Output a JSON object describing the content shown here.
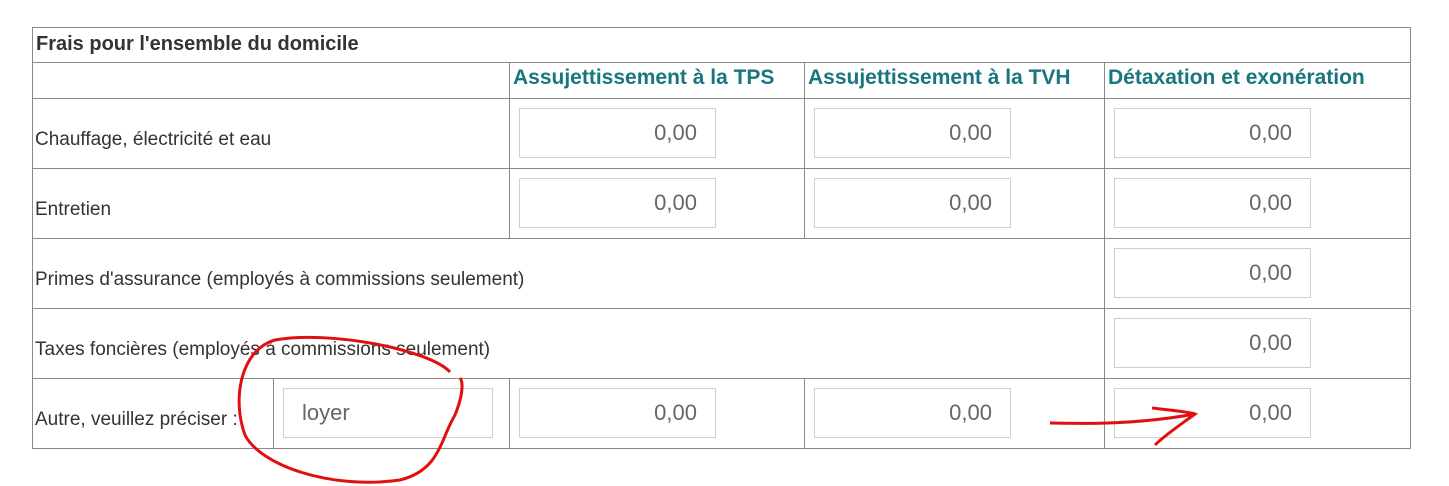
{
  "title": "Frais pour l'ensemble du domicile",
  "columns": [
    "Assujettissement à la TPS",
    "Assujettissement à la TVH",
    "Détaxation et exonération"
  ],
  "rows": [
    {
      "label": "Chauffage, électricité et eau",
      "values": [
        "0,00",
        "0,00",
        "0,00"
      ]
    },
    {
      "label": "Entretien",
      "values": [
        "0,00",
        "0,00",
        "0,00"
      ]
    },
    {
      "label": "Primes d'assurance (employés à commissions seulement)",
      "values": [
        "0,00"
      ]
    },
    {
      "label": "Taxes foncières (employés à commissions seulement)",
      "values": [
        "0,00"
      ]
    },
    {
      "label": "Autre, veuillez préciser :",
      "specify": "loyer",
      "values": [
        "0,00",
        "0,00",
        "0,00"
      ]
    }
  ],
  "annotation_color": "#e01010"
}
